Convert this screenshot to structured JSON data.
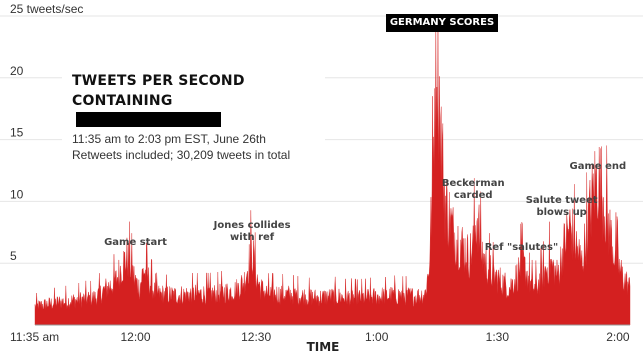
{
  "chart_data": {
    "type": "area",
    "title_lines": [
      "TWEETS PER SECOND",
      "CONTAINING"
    ],
    "subtitle_lines": [
      "11:35 am to 2:03 pm EST, June 26th",
      "Retweets included; 30,209 tweets in total"
    ],
    "xlabel": "TIME",
    "ylabel": "",
    "x_ticks": [
      "11:35 am",
      "12:00",
      "12:30",
      "1:00",
      "1:30",
      "2:00"
    ],
    "y_ticks": [
      "25 tweets/sec",
      "20",
      "15",
      "10",
      "5"
    ],
    "xlim_minutes_after_1135": [
      0,
      148
    ],
    "ylim": [
      0,
      25
    ],
    "fill_color": "#d42020",
    "grid": "horizontal",
    "series": [
      {
        "x_minutes_after_1135": [
          0,
          5,
          10,
          15,
          18,
          20,
          22,
          23,
          24,
          25,
          26,
          27,
          30,
          35,
          40,
          45,
          50,
          52,
          54,
          55,
          56,
          58,
          60,
          65,
          70,
          75,
          80,
          85,
          90,
          95,
          97,
          98,
          99,
          99.5,
          100,
          100.5,
          101,
          102,
          104,
          106,
          108,
          109,
          110,
          111,
          112,
          114,
          116,
          118,
          120,
          121,
          122,
          123,
          124,
          125,
          126,
          128,
          130,
          132,
          133,
          134,
          135,
          136,
          138,
          139,
          140,
          141,
          142,
          144,
          146,
          148
        ],
        "values": [
          1.5,
          1.8,
          2.0,
          2.2,
          3.0,
          3.5,
          5.0,
          5.5,
          4.5,
          3.5,
          3.0,
          4.5,
          2.5,
          2.4,
          2.5,
          2.5,
          2.8,
          3.5,
          6.0,
          4.0,
          3.0,
          2.5,
          2.5,
          2.4,
          2.2,
          2.3,
          2.2,
          2.3,
          2.4,
          2.3,
          2.5,
          4.5,
          12.0,
          20.0,
          23.0,
          19.0,
          15.0,
          10.0,
          7.5,
          6.5,
          5.5,
          6.5,
          9.0,
          6.0,
          5.0,
          4.0,
          3.5,
          3.0,
          4.0,
          5.0,
          4.5,
          3.5,
          3.0,
          3.2,
          3.8,
          5.0,
          4.0,
          7.0,
          8.0,
          7.0,
          6.0,
          5.0,
          9.0,
          11.0,
          12.0,
          11.0,
          9.0,
          6.0,
          4.0,
          3.0
        ]
      }
    ],
    "annotations": [
      {
        "lines": [
          "Game start"
        ],
        "x_minutes_after_1135": 25
      },
      {
        "lines": [
          "Jones collides",
          "with ref"
        ],
        "x_minutes_after_1135": 54
      },
      {
        "lines": [
          "GERMANY SCORES"
        ],
        "x_minutes_after_1135": 100,
        "style": "badge"
      },
      {
        "lines": [
          "Beckerman",
          "carded"
        ],
        "x_minutes_after_1135": 109
      },
      {
        "lines": [
          "Ref \"salutes\""
        ],
        "x_minutes_after_1135": 121
      },
      {
        "lines": [
          "Salute tweet",
          "blows up"
        ],
        "x_minutes_after_1135": 131
      },
      {
        "lines": [
          "Game end"
        ],
        "x_minutes_after_1135": 140
      }
    ]
  }
}
